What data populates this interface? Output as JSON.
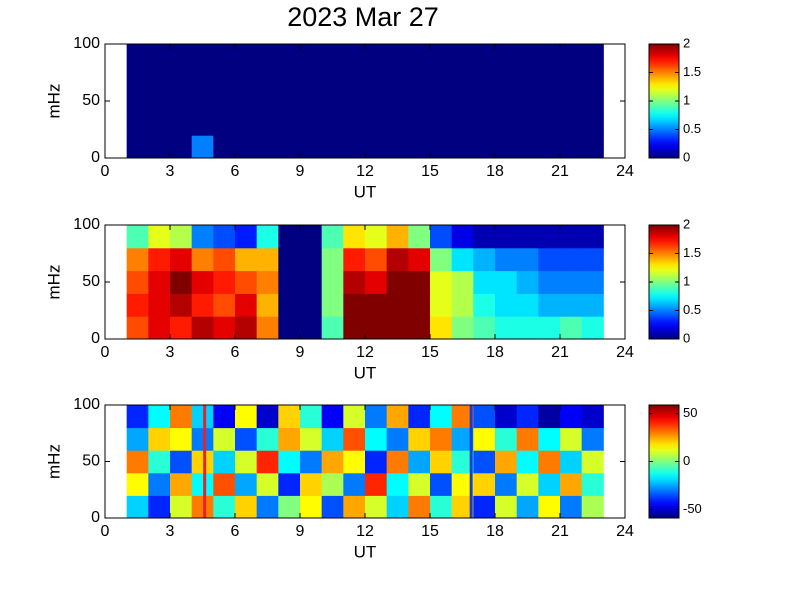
{
  "title": "2023 Mar 27",
  "chart_data": [
    {
      "type": "heatmap",
      "colormap": "jet",
      "xlabel": "UT",
      "ylabel": "mHz",
      "xlim": [
        0,
        24
      ],
      "xticks": [
        0,
        3,
        6,
        9,
        12,
        15,
        18,
        21,
        24
      ],
      "ylim": [
        0,
        100
      ],
      "yticks": [
        0,
        50,
        100
      ],
      "clim": [
        0,
        2
      ],
      "cticks": [
        0,
        0.5,
        1,
        1.5,
        2
      ],
      "xbins": [
        1,
        2,
        3,
        4,
        5,
        6,
        7,
        8,
        9,
        10,
        11,
        12,
        13,
        14,
        15,
        16,
        17,
        18,
        19,
        20,
        21,
        22,
        23
      ],
      "ybins": [
        0,
        20,
        40,
        60,
        80,
        100
      ],
      "z": [
        [
          0,
          0,
          0,
          0.5,
          0,
          0,
          0,
          0,
          0,
          0,
          0,
          0,
          0,
          0,
          0,
          0,
          0,
          0,
          0,
          0,
          0,
          0
        ],
        [
          0,
          0,
          0,
          0,
          0,
          0,
          0,
          0,
          0,
          0,
          0,
          0,
          0,
          0,
          0,
          0,
          0,
          0,
          0,
          0,
          0,
          0
        ],
        [
          0,
          0,
          0,
          0,
          0,
          0,
          0,
          0,
          0,
          0,
          0,
          0,
          0,
          0,
          0,
          0,
          0,
          0,
          0,
          0,
          0,
          0
        ],
        [
          0,
          0,
          0,
          0,
          0,
          0,
          0,
          0,
          0,
          0,
          0,
          0,
          0,
          0,
          0,
          0,
          0,
          0,
          0,
          0,
          0,
          0
        ],
        [
          0,
          0,
          0,
          0,
          0,
          0,
          0,
          0,
          0,
          0,
          0,
          0,
          0,
          0,
          0,
          0,
          0,
          0,
          0,
          0,
          0,
          0
        ]
      ]
    },
    {
      "type": "heatmap",
      "colormap": "jet",
      "xlabel": "UT",
      "ylabel": "mHz",
      "xlim": [
        0,
        24
      ],
      "xticks": [
        0,
        3,
        6,
        9,
        12,
        15,
        18,
        21,
        24
      ],
      "ylim": [
        0,
        100
      ],
      "yticks": [
        0,
        50,
        100
      ],
      "clim": [
        0,
        2
      ],
      "cticks": [
        0,
        0.5,
        1,
        1.5,
        2
      ],
      "xbins": [
        1,
        2,
        3,
        4,
        5,
        6,
        7,
        8,
        9,
        10,
        11,
        12,
        13,
        14,
        15,
        16,
        17,
        18,
        19,
        20,
        21,
        22,
        23
      ],
      "ybins": [
        0,
        20,
        40,
        60,
        80,
        100
      ],
      "z": [
        [
          1.6,
          1.8,
          1.7,
          1.9,
          1.8,
          1.9,
          1.5,
          0,
          0,
          0.9,
          2,
          2,
          2,
          2,
          1.3,
          1.0,
          0.9,
          0.8,
          0.8,
          0.8,
          0.9,
          0.8
        ],
        [
          1.7,
          1.8,
          1.9,
          1.7,
          1.6,
          1.8,
          1.4,
          0,
          0,
          1.0,
          2,
          2,
          2,
          2,
          1.2,
          1.1,
          0.8,
          0.7,
          0.7,
          0.6,
          0.6,
          0.6
        ],
        [
          1.6,
          1.8,
          2,
          1.8,
          1.7,
          1.6,
          1.5,
          0,
          0,
          1.0,
          1.9,
          1.8,
          2,
          2,
          1.2,
          1.1,
          0.7,
          0.7,
          0.6,
          0.5,
          0.5,
          0.5
        ],
        [
          1.5,
          1.7,
          1.8,
          1.5,
          1.6,
          1.4,
          1.4,
          0,
          0,
          1.0,
          1.7,
          1.6,
          1.9,
          1.8,
          1.0,
          0.7,
          0.6,
          0.5,
          0.5,
          0.4,
          0.4,
          0.4
        ],
        [
          0.9,
          1.2,
          1.1,
          0.5,
          0.4,
          0.3,
          0.8,
          0,
          0,
          0.9,
          1.3,
          1.2,
          1.4,
          1.0,
          0.4,
          0.2,
          0.1,
          0.1,
          0.1,
          0.1,
          0.1,
          0.1
        ]
      ]
    },
    {
      "type": "heatmap",
      "colormap": "jet",
      "xlabel": "UT",
      "ylabel": "mHz",
      "xlim": [
        0,
        24
      ],
      "xticks": [
        0,
        3,
        6,
        9,
        12,
        15,
        18,
        21,
        24
      ],
      "ylim": [
        0,
        100
      ],
      "yticks": [
        0,
        50,
        100
      ],
      "clim": [
        -59,
        59
      ],
      "cticks": [
        -50,
        0,
        50
      ],
      "xbins": [
        1,
        2,
        3,
        4,
        5,
        6,
        7,
        8,
        9,
        10,
        11,
        12,
        13,
        14,
        15,
        16,
        17,
        18,
        19,
        20,
        21,
        22,
        23
      ],
      "ybins": [
        0,
        20,
        40,
        60,
        80,
        100
      ],
      "z": [
        [
          -20,
          -40,
          10,
          30,
          -10,
          20,
          -30,
          0,
          15,
          -35,
          25,
          10,
          -20,
          30,
          -10,
          20,
          -40,
          10,
          -25,
          15,
          -30,
          5
        ],
        [
          15,
          -30,
          25,
          -15,
          35,
          -25,
          10,
          -40,
          20,
          5,
          -30,
          40,
          -15,
          10,
          -35,
          15,
          20,
          -30,
          10,
          -20,
          25,
          -10
        ],
        [
          30,
          -10,
          -35,
          20,
          -20,
          10,
          40,
          -15,
          -30,
          25,
          15,
          -40,
          30,
          -25,
          20,
          -10,
          -35,
          25,
          -15,
          30,
          -20,
          10
        ],
        [
          -25,
          20,
          15,
          -30,
          10,
          -35,
          -10,
          25,
          10,
          -20,
          35,
          -15,
          -30,
          20,
          30,
          -25,
          15,
          -10,
          30,
          -15,
          10,
          -30
        ],
        [
          -40,
          -15,
          30,
          -20,
          -45,
          15,
          -50,
          20,
          -10,
          -45,
          10,
          -30,
          25,
          -40,
          -15,
          30,
          -35,
          -50,
          -40,
          -55,
          -45,
          -50
        ]
      ],
      "vlines": [
        {
          "x": 4.6,
          "color": "#e8202a"
        },
        {
          "x": 16.9,
          "color": "#1a3ad8"
        }
      ]
    }
  ]
}
